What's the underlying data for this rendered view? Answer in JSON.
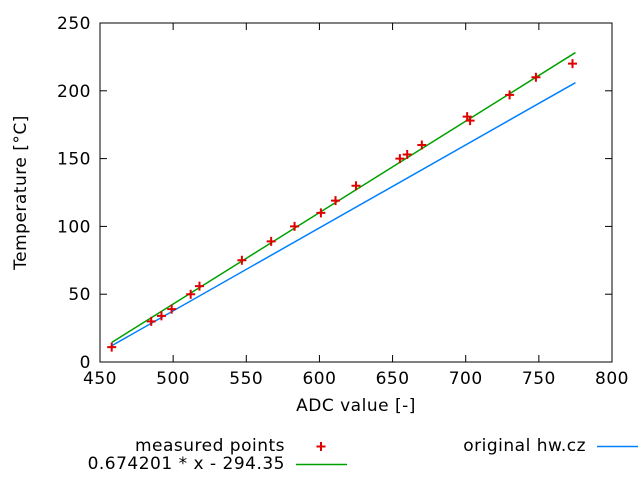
{
  "chart_data": {
    "type": "scatter",
    "title": "",
    "xlabel": "ADC value [-]",
    "ylabel": "Temperature [°C]",
    "xlim": [
      450,
      800
    ],
    "ylim": [
      0,
      250
    ],
    "xticks": [
      450,
      500,
      550,
      600,
      650,
      700,
      750,
      800
    ],
    "yticks": [
      0,
      50,
      100,
      150,
      200,
      250
    ],
    "grid": false,
    "legend_position": "below-plot",
    "series": [
      {
        "name": "measured points",
        "type": "scatter",
        "marker": "plus",
        "color": "#e00000",
        "points": [
          [
            458,
            11
          ],
          [
            485,
            30
          ],
          [
            492,
            34
          ],
          [
            499,
            39
          ],
          [
            512,
            50
          ],
          [
            518,
            56
          ],
          [
            547,
            75
          ],
          [
            567,
            89
          ],
          [
            583,
            100
          ],
          [
            601,
            110
          ],
          [
            611,
            119
          ],
          [
            625,
            130
          ],
          [
            655,
            150
          ],
          [
            660,
            153
          ],
          [
            670,
            160
          ],
          [
            701,
            181
          ],
          [
            703,
            178
          ],
          [
            730,
            197
          ],
          [
            748,
            210
          ],
          [
            773,
            220
          ]
        ]
      },
      {
        "name": "0.674201 * x - 294.35",
        "type": "line",
        "color": "#00a000",
        "points": [
          [
            458,
            14.4
          ],
          [
            775,
            228.2
          ]
        ]
      },
      {
        "name": "original hw.cz",
        "type": "line",
        "color": "#0080ff",
        "points": [
          [
            458,
            12
          ],
          [
            775,
            206
          ]
        ]
      }
    ]
  },
  "colors": {
    "background": "#ffffff",
    "axis": "#000000",
    "measured": "#e00000",
    "fit": "#00a000",
    "original": "#0080ff"
  }
}
